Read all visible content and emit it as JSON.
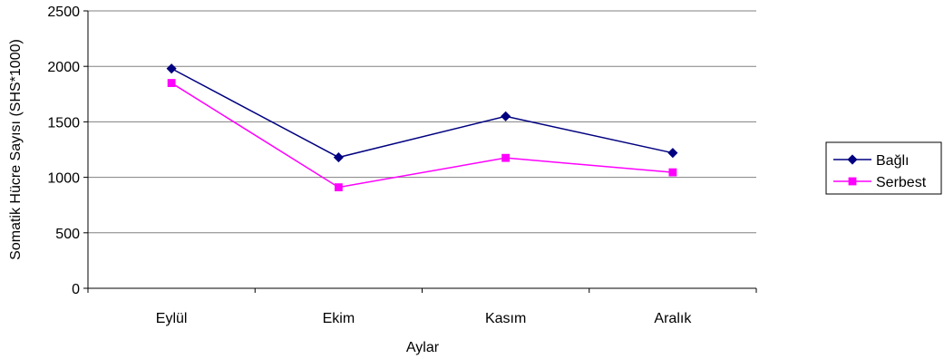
{
  "chart_data": {
    "type": "line",
    "categories": [
      "Eylül",
      "Ekim",
      "Kasım",
      "Aralık"
    ],
    "series": [
      {
        "name": "Bağlı",
        "values": [
          1980,
          1180,
          1550,
          1220
        ],
        "color": "#000080",
        "marker": "diamond"
      },
      {
        "name": "Serbest",
        "values": [
          1850,
          910,
          1175,
          1045
        ],
        "color": "#FF00FF",
        "marker": "square"
      }
    ],
    "title": "",
    "xlabel": "Aylar",
    "ylabel": "Somatik Hücre Sayısı (SHS*1000)",
    "ylim": [
      0,
      2500
    ],
    "yticks": [
      0,
      500,
      1000,
      1500,
      2000,
      2500
    ],
    "grid": true,
    "legend": "right"
  }
}
